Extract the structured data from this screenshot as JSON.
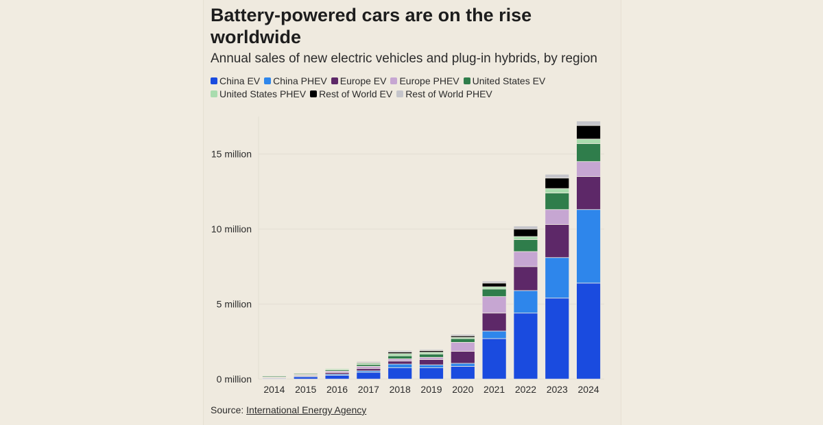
{
  "title": "Battery-powered cars are on the rise worldwide",
  "subtitle": "Annual sales of new electric vehicles and plug-in hybrids, by region",
  "source_label": "Source:",
  "source_link": "International Energy Agency",
  "chart_data": {
    "type": "bar",
    "stacked": true,
    "categories": [
      "2014",
      "2015",
      "2016",
      "2017",
      "2018",
      "2019",
      "2020",
      "2021",
      "2022",
      "2023",
      "2024"
    ],
    "series": [
      {
        "name": "China EV",
        "color": "#1a4bdf",
        "values": [
          0.05,
          0.15,
          0.25,
          0.45,
          0.75,
          0.75,
          0.85,
          2.7,
          4.4,
          5.4,
          6.4
        ]
      },
      {
        "name": "China PHEV",
        "color": "#2e86eb",
        "values": [
          0.02,
          0.05,
          0.08,
          0.1,
          0.25,
          0.2,
          0.2,
          0.5,
          1.5,
          2.7,
          4.9
        ]
      },
      {
        "name": "Europe EV",
        "color": "#5d2868",
        "values": [
          0.04,
          0.05,
          0.1,
          0.15,
          0.2,
          0.35,
          0.8,
          1.2,
          1.6,
          2.2,
          2.2
        ]
      },
      {
        "name": "Europe PHEV",
        "color": "#c6a6d2",
        "values": [
          0.03,
          0.05,
          0.1,
          0.15,
          0.15,
          0.15,
          0.6,
          1.1,
          1.0,
          1.0,
          1.0
        ]
      },
      {
        "name": "United States EV",
        "color": "#2f7d4b",
        "values": [
          0.06,
          0.06,
          0.08,
          0.12,
          0.2,
          0.22,
          0.25,
          0.5,
          0.8,
          1.1,
          1.2
        ]
      },
      {
        "name": "United States PHEV",
        "color": "#a9dcae",
        "values": [
          0.05,
          0.04,
          0.08,
          0.1,
          0.15,
          0.12,
          0.08,
          0.15,
          0.2,
          0.3,
          0.3
        ]
      },
      {
        "name": "Rest of World EV",
        "color": "#000000",
        "values": [
          0.02,
          0.03,
          0.04,
          0.05,
          0.1,
          0.1,
          0.1,
          0.25,
          0.5,
          0.7,
          0.9
        ]
      },
      {
        "name": "Rest of World PHEV",
        "color": "#c5c5cb",
        "values": [
          0.01,
          0.02,
          0.02,
          0.06,
          0.1,
          0.08,
          0.1,
          0.13,
          0.2,
          0.25,
          0.3
        ]
      }
    ],
    "y_ticks": [
      0,
      5,
      10,
      15
    ],
    "y_tick_labels": [
      "0 million",
      "5 million",
      "10 million",
      "15 million"
    ],
    "ylim": [
      0,
      17.5
    ],
    "xlabel": "",
    "ylabel": "",
    "grid": true,
    "legend_position": "top"
  }
}
